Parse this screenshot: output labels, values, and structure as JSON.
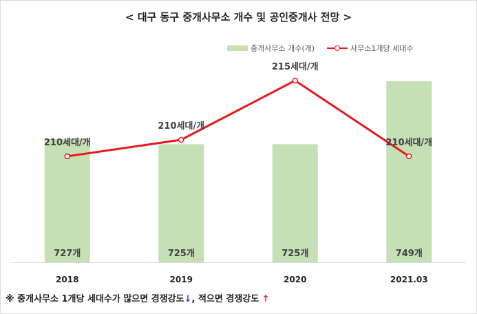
{
  "title": "< 대구 동구 중개사무소 개수 및 공인중개사 전망 >",
  "legend": {
    "bar_label": "중개사무소 개수(개)",
    "line_label": "사무소1개당 세대수"
  },
  "footnote": {
    "text": "※ 중개사무소 1개당 세대수가 많으면 경쟁강도",
    "down_arrow": "↓",
    "middle": ", 적으면 경쟁강도 ",
    "up_arrow": "↑"
  },
  "colors": {
    "bar": "#c5e0b4",
    "line": "#e41a1c",
    "arrow_down": "#1f3fd6",
    "arrow_up": "#e0191b"
  },
  "chart_data": {
    "type": "bar",
    "categories": [
      "2018",
      "2019",
      "2020",
      "2021.03"
    ],
    "series": [
      {
        "name": "중개사무소 개수(개)",
        "type": "bar",
        "values": [
          727,
          725,
          725,
          749
        ],
        "labels": [
          "727개",
          "725개",
          "725개",
          "749개"
        ]
      },
      {
        "name": "사무소1개당 세대수",
        "type": "line",
        "values": [
          210,
          210,
          215,
          210
        ],
        "labels": [
          "210세대/개",
          "210세대/개",
          "215세대/개",
          "210세대/개"
        ]
      }
    ],
    "bar_axis_range": [
      680,
      755
    ],
    "line_axis_range": [
      203,
      216
    ],
    "grid": false,
    "legend_position": "top-right"
  }
}
